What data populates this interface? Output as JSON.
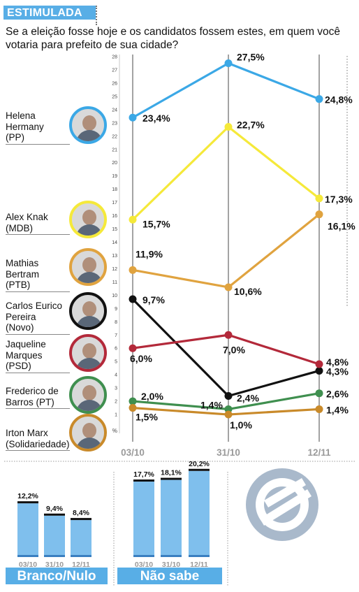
{
  "header": {
    "tag": "ESTIMULADA",
    "question": "Se a eleição fosse hoje e os candidatos fossem estes, em quem você votaria para prefeito de sua cidade?"
  },
  "candidates": [
    {
      "name": "Helena Hermany (PP)",
      "lines": [
        "Helena",
        "Hermany",
        "(PP)"
      ],
      "color": "#3ba8e6"
    },
    {
      "name": "Alex Knak (MDB)",
      "lines": [
        "Alex Knak",
        "(MDB)"
      ],
      "color": "#f5e93a"
    },
    {
      "name": "Mathias Bertram (PTB)",
      "lines": [
        "Mathias",
        "Bertram",
        "(PTB)"
      ],
      "color": "#e0a33f"
    },
    {
      "name": "Carlos Eurico Pereira (Novo)",
      "lines": [
        "Carlos Eurico",
        "Pereira",
        "(Novo)"
      ],
      "color": "#111111"
    },
    {
      "name": "Jaqueline Marques (PSD)",
      "lines": [
        "Jaqueline",
        "Marques",
        "(PSD)"
      ],
      "color": "#b3293a"
    },
    {
      "name": "Frederico de Barros (PT)",
      "lines": [
        "Frederico de",
        "Barros (PT)"
      ],
      "color": "#3f8f4f"
    },
    {
      "name": "Irton Marx (Solidariedade)",
      "lines": [
        "Irton Marx",
        "(Solidariedade)"
      ],
      "color": "#c98a2a"
    }
  ],
  "chart_data": [
    {
      "type": "line",
      "x": [
        "03/10",
        "31/10",
        "12/11"
      ],
      "ylim": [
        0,
        28
      ],
      "y_unit_label": "%",
      "grid": "vertical",
      "yticks": [
        1,
        2,
        3,
        4,
        5,
        6,
        7,
        8,
        9,
        10,
        11,
        12,
        13,
        14,
        15,
        16,
        17,
        18,
        19,
        20,
        21,
        22,
        23,
        24,
        25,
        26,
        27,
        28
      ],
      "series": [
        {
          "name": "Helena Hermany (PP)",
          "color": "#3ba8e6",
          "values": [
            23.4,
            27.5,
            24.8
          ],
          "labels": [
            "23,4%",
            "27,5%",
            "24,8%"
          ]
        },
        {
          "name": "Alex Knak (MDB)",
          "color": "#f5e93a",
          "values": [
            15.7,
            22.7,
            17.3
          ],
          "labels": [
            "15,7%",
            "22,7%",
            "17,3%"
          ]
        },
        {
          "name": "Mathias Bertram (PTB)",
          "color": "#e0a33f",
          "values": [
            11.9,
            10.6,
            16.1
          ],
          "labels": [
            "11,9%",
            "10,6%",
            "16,1%"
          ]
        },
        {
          "name": "Carlos Eurico Pereira (Novo)",
          "color": "#111111",
          "values": [
            9.7,
            2.4,
            4.3
          ],
          "labels": [
            "9,7%",
            "2,4%",
            "4,3%"
          ]
        },
        {
          "name": "Jaqueline Marques (PSD)",
          "color": "#b3293a",
          "values": [
            6.0,
            7.0,
            4.8
          ],
          "labels": [
            "6,0%",
            "7,0%",
            "4,8%"
          ]
        },
        {
          "name": "Frederico de Barros (PT)",
          "color": "#3f8f4f",
          "values": [
            2.0,
            1.4,
            2.6
          ],
          "labels": [
            "2,0%",
            "1,4%",
            "2,6%"
          ]
        },
        {
          "name": "Irton Marx (Solidariedade)",
          "color": "#c98a2a",
          "values": [
            1.5,
            1.0,
            1.4
          ],
          "labels": [
            "1,5%",
            "1,0%",
            "1,4%"
          ]
        }
      ]
    },
    {
      "type": "bar",
      "title": "Branco/Nulo",
      "categories": [
        "03/10",
        "31/10",
        "12/11"
      ],
      "values": [
        12.2,
        9.4,
        8.4
      ],
      "labels": [
        "12,2%",
        "9,4%",
        "8,4%"
      ],
      "color": "#7fbfed"
    },
    {
      "type": "bar",
      "title": "Não sabe",
      "categories": [
        "03/10",
        "31/10",
        "12/11"
      ],
      "values": [
        17.7,
        18.1,
        20.2
      ],
      "labels": [
        "17,7%",
        "18,1%",
        "20,2%"
      ],
      "color": "#7fbfed"
    }
  ]
}
